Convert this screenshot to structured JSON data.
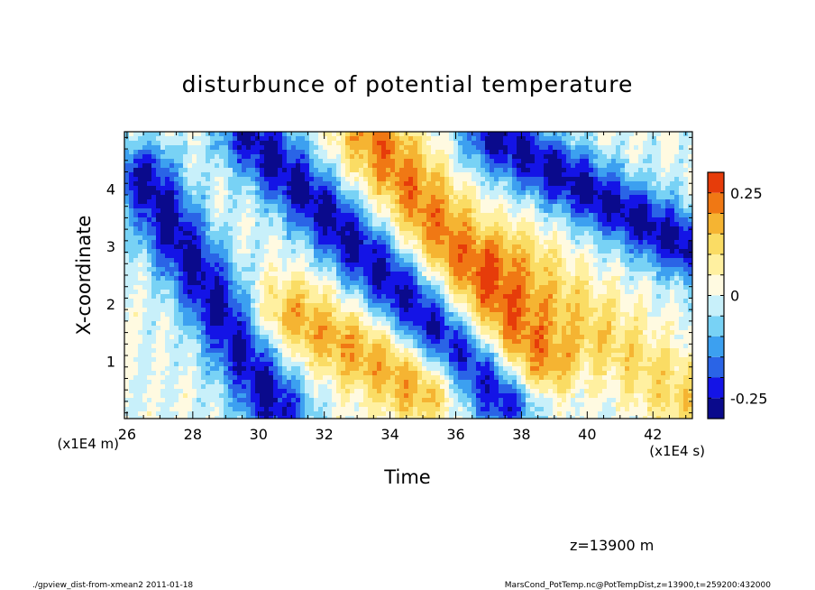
{
  "chart_data": {
    "type": "heatmap",
    "title": "disturbunce of potential temperature",
    "xlabel": "Time",
    "ylabel": "X-coordinate",
    "x_unit": "(x1E4 s)",
    "y_unit": "(x1E4 m)",
    "xlim": [
      25.92,
      43.2
    ],
    "ylim": [
      0,
      5
    ],
    "x_ticks": [
      "26",
      "28",
      "30",
      "32",
      "34",
      "36",
      "38",
      "40",
      "42"
    ],
    "y_ticks": [
      "1",
      "2",
      "3",
      "4"
    ],
    "colorbar": {
      "levels": [
        -0.3,
        -0.25,
        -0.2,
        -0.15,
        -0.1,
        -0.05,
        0,
        0.05,
        0.1,
        0.15,
        0.2,
        0.25,
        0.3
      ],
      "colors": [
        "#0a0a8c",
        "#1414e6",
        "#2a64e6",
        "#3ca0f0",
        "#78d2f5",
        "#c8f0fa",
        "#fffae1",
        "#fff0a0",
        "#fadc64",
        "#f5b432",
        "#f07814",
        "#e63c0a"
      ],
      "labels": [
        "0.25",
        "0",
        "-0.25"
      ]
    },
    "bands": [
      {
        "sign": "negative",
        "from": [
          26.5,
          4.2
        ],
        "to": [
          30.5,
          0.2
        ],
        "peak": -0.27
      },
      {
        "sign": "negative",
        "from": [
          29.8,
          4.9
        ],
        "to": [
          37.5,
          0.3
        ],
        "peak": -0.27
      },
      {
        "sign": "negative",
        "from": [
          37.2,
          4.9
        ],
        "to": [
          43.0,
          3.0
        ],
        "peak": -0.27
      },
      {
        "sign": "positive",
        "from": [
          31.0,
          1.8
        ],
        "to": [
          35.0,
          0.5
        ],
        "peak": 0.18
      },
      {
        "sign": "positive",
        "from": [
          33.5,
          4.9
        ],
        "to": [
          38.5,
          1.0
        ],
        "peak": 0.22
      },
      {
        "sign": "positive",
        "from": [
          37.8,
          2.8
        ],
        "to": [
          43.0,
          0.3
        ],
        "peak": 0.12
      }
    ]
  },
  "annotation": "z=13900 m",
  "footer_left": "./gpview_dist-from-xmean2  2011-01-18",
  "footer_right": "MarsCond_PotTemp.nc@PotTempDist,z=13900,t=259200:432000"
}
